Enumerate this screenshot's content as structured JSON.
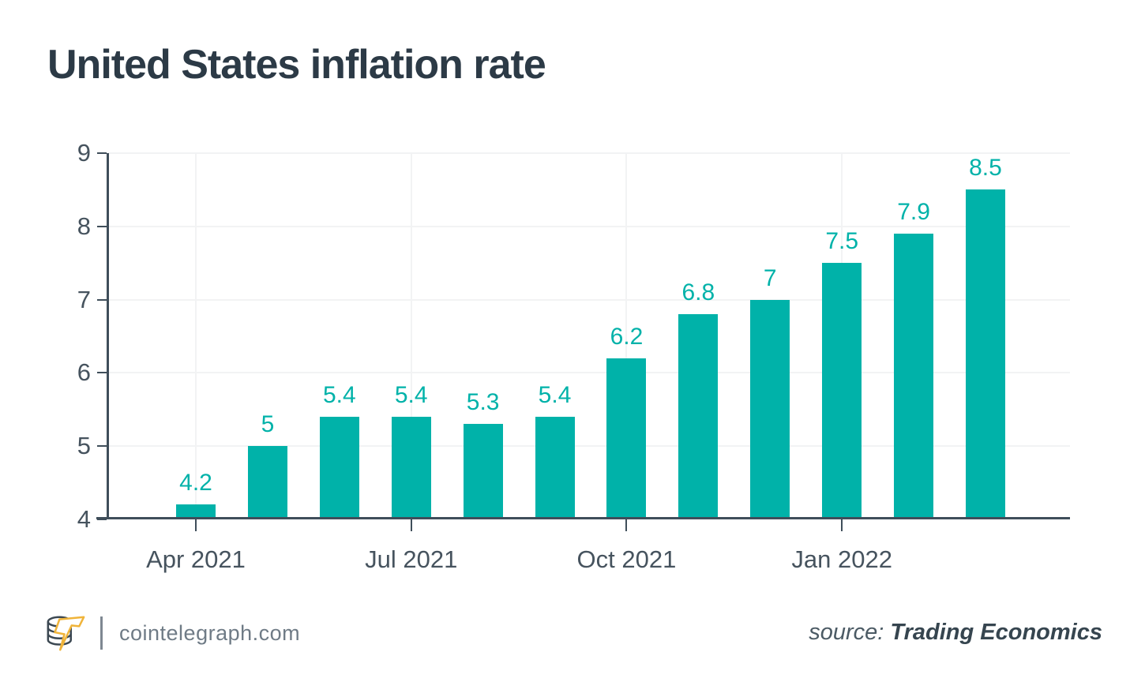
{
  "chart_data": {
    "type": "bar",
    "title": "United States inflation rate",
    "values": [
      4.2,
      5,
      5.4,
      5.4,
      5.3,
      5.4,
      6.2,
      6.8,
      7,
      7.5,
      7.9,
      8.5
    ],
    "bar_value_labels": [
      "4.2",
      "5",
      "5.4",
      "5.4",
      "5.3",
      "5.4",
      "6.2",
      "6.8",
      "7",
      "7.5",
      "7.9",
      "8.5"
    ],
    "x_tick_labels": [
      {
        "bar_index": 0,
        "label": "Apr 2021"
      },
      {
        "bar_index": 3,
        "label": "Jul 2021"
      },
      {
        "bar_index": 6,
        "label": "Oct 2021"
      },
      {
        "bar_index": 9,
        "label": "Jan 2022"
      }
    ],
    "y_ticks": [
      4,
      5,
      6,
      7,
      8,
      9
    ],
    "ylim": [
      4,
      9
    ],
    "xlabel": "",
    "ylabel": "",
    "legend": "none",
    "grid": {
      "horizontal": true,
      "vertical_at_x_ticks": true
    },
    "colors": {
      "bar": "#00b2a9",
      "value_label": "#00b2a9",
      "axis_line": "#3f4e5a",
      "tick_label": "#46535e",
      "gridline": "#f2f3f4",
      "title": "#2c3a46"
    }
  },
  "footer": {
    "logo_icon": "cointelegraph-coins-lightning-logo",
    "logo_colors": {
      "outline": "#3c4852",
      "bolt": "#f0b43a"
    },
    "brand_text": "cointelegraph.com",
    "source_prefix": "source:",
    "source_name": "Trading Economics"
  }
}
